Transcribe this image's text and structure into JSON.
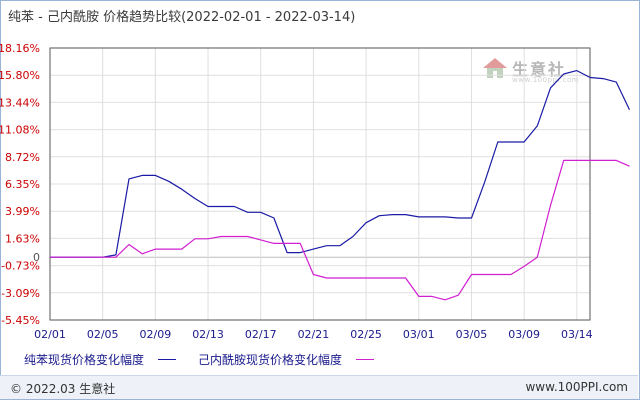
{
  "title": "纯苯 - 己内酰胺 价格趋势比较(2022-02-01 - 2022-03-14)",
  "watermark": {
    "text": "生意社",
    "sub": "www.100ppi.com"
  },
  "footer": {
    "copyright": "© 2022.03 生意社",
    "url": "www.100PPI.com"
  },
  "chart_data": {
    "type": "line",
    "title": "纯苯 - 己内酰胺 价格趋势比较(2022-02-01 - 2022-03-14)",
    "ylim": [
      -5.45,
      18.16
    ],
    "yticks": [
      18.16,
      15.8,
      13.44,
      11.08,
      8.72,
      6.35,
      3.99,
      1.63,
      -0.73,
      -3.09,
      -5.45
    ],
    "ytick_labels": [
      "18.16%",
      "15.80%",
      "13.44%",
      "11.08%",
      "8.72%",
      "6.35%",
      "3.99%",
      "1.63%",
      "-0.73%",
      "-3.09%",
      "-5.45%"
    ],
    "zero_label": "0",
    "xlim_day": [
      0,
      41
    ],
    "xticks": [
      {
        "day": 0,
        "label": "02/01"
      },
      {
        "day": 4,
        "label": "02/05"
      },
      {
        "day": 8,
        "label": "02/09"
      },
      {
        "day": 12,
        "label": "02/13"
      },
      {
        "day": 16,
        "label": "02/17"
      },
      {
        "day": 20,
        "label": "02/21"
      },
      {
        "day": 24,
        "label": "02/25"
      },
      {
        "day": 28,
        "label": "03/01"
      },
      {
        "day": 32,
        "label": "03/05"
      },
      {
        "day": 36,
        "label": "03/09"
      },
      {
        "day": 40,
        "label": "03/14"
      }
    ],
    "grid": true,
    "legend_position": "bottom",
    "series": [
      {
        "name": "纯苯现货价格变化幅度",
        "color": "#1a1aa6",
        "points": [
          [
            0,
            0
          ],
          [
            4,
            0
          ],
          [
            5,
            0.2
          ],
          [
            6,
            6.8
          ],
          [
            7,
            7.1
          ],
          [
            8,
            7.1
          ],
          [
            9,
            6.6
          ],
          [
            10,
            5.9
          ],
          [
            11,
            5.1
          ],
          [
            12,
            4.4
          ],
          [
            13,
            4.4
          ],
          [
            14,
            4.4
          ],
          [
            15,
            3.9
          ],
          [
            16,
            3.9
          ],
          [
            17,
            3.4
          ],
          [
            18,
            0.4
          ],
          [
            19,
            0.4
          ],
          [
            20,
            0.7
          ],
          [
            21,
            1.0
          ],
          [
            22,
            1.0
          ],
          [
            23,
            1.8
          ],
          [
            24,
            3.0
          ],
          [
            25,
            3.6
          ],
          [
            26,
            3.7
          ],
          [
            27,
            3.7
          ],
          [
            28,
            3.5
          ],
          [
            29,
            3.5
          ],
          [
            30,
            3.5
          ],
          [
            31,
            3.4
          ],
          [
            32,
            3.4
          ],
          [
            33,
            6.5
          ],
          [
            34,
            10.0
          ],
          [
            35,
            10.0
          ],
          [
            36,
            10.0
          ],
          [
            37,
            11.4
          ],
          [
            38,
            14.7
          ],
          [
            39,
            15.9
          ],
          [
            40,
            16.2
          ],
          [
            41,
            15.6
          ],
          [
            42,
            15.5
          ],
          [
            43,
            15.2
          ],
          [
            44,
            12.8
          ]
        ]
      },
      {
        "name": "己内酰胺现货价格变化幅度",
        "color": "#d11fd1",
        "points": [
          [
            0,
            0
          ],
          [
            4,
            0
          ],
          [
            5,
            0
          ],
          [
            6,
            1.1
          ],
          [
            7,
            0.3
          ],
          [
            8,
            0.7
          ],
          [
            9,
            0.7
          ],
          [
            10,
            0.7
          ],
          [
            11,
            1.6
          ],
          [
            12,
            1.6
          ],
          [
            13,
            1.8
          ],
          [
            14,
            1.8
          ],
          [
            15,
            1.8
          ],
          [
            16,
            1.5
          ],
          [
            17,
            1.2
          ],
          [
            18,
            1.2
          ],
          [
            19,
            1.2
          ],
          [
            20,
            -1.5
          ],
          [
            21,
            -1.8
          ],
          [
            22,
            -1.8
          ],
          [
            23,
            -1.8
          ],
          [
            24,
            -1.8
          ],
          [
            25,
            -1.8
          ],
          [
            26,
            -1.8
          ],
          [
            27,
            -1.8
          ],
          [
            28,
            -3.4
          ],
          [
            29,
            -3.4
          ],
          [
            30,
            -3.7
          ],
          [
            31,
            -3.3
          ],
          [
            32,
            -1.5
          ],
          [
            33,
            -1.5
          ],
          [
            34,
            -1.5
          ],
          [
            35,
            -1.5
          ],
          [
            36,
            -0.8
          ],
          [
            37,
            0
          ],
          [
            38,
            4.5
          ],
          [
            39,
            8.4
          ],
          [
            40,
            8.4
          ],
          [
            41,
            8.4
          ],
          [
            42,
            8.4
          ],
          [
            43,
            8.4
          ],
          [
            44,
            7.9
          ]
        ]
      }
    ]
  }
}
